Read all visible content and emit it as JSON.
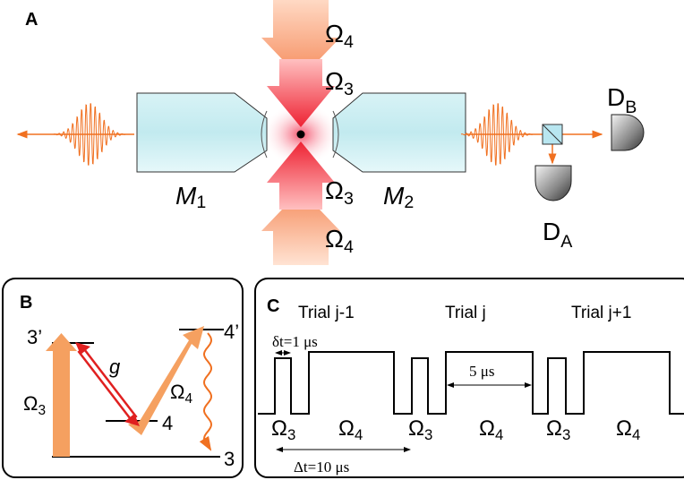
{
  "panel_a": {
    "label": "A",
    "beams": [
      {
        "main": "Ω",
        "sub": "4"
      },
      {
        "main": "Ω",
        "sub": "3"
      },
      {
        "main": "Ω",
        "sub": "3"
      },
      {
        "main": "Ω",
        "sub": "4"
      }
    ],
    "mirrors": [
      {
        "main": "M",
        "sub": "1"
      },
      {
        "main": "M",
        "sub": "2"
      }
    ],
    "detectors": [
      {
        "main": "D",
        "sub": "B"
      },
      {
        "main": "D",
        "sub": "A"
      }
    ]
  },
  "panel_b": {
    "label": "B",
    "levels": [
      "3’",
      "4",
      "4’",
      "3"
    ],
    "coupling": "g",
    "drives": [
      {
        "main": "Ω",
        "sub": "3"
      },
      {
        "main": "Ω",
        "sub": "4"
      }
    ]
  },
  "panel_c": {
    "label": "C",
    "trials": [
      "Trial j-1",
      "Trial j",
      "Trial j+1"
    ],
    "pulse_width": "δt=1 μs",
    "gap": "5 μs",
    "period": "Δt=10 μs",
    "pulses": [
      {
        "main": "Ω",
        "sub": "3"
      },
      {
        "main": "Ω",
        "sub": "4"
      },
      {
        "main": "Ω",
        "sub": "3"
      },
      {
        "main": "Ω",
        "sub": "4"
      },
      {
        "main": "Ω",
        "sub": "3"
      },
      {
        "main": "Ω",
        "sub": "4"
      }
    ]
  }
}
